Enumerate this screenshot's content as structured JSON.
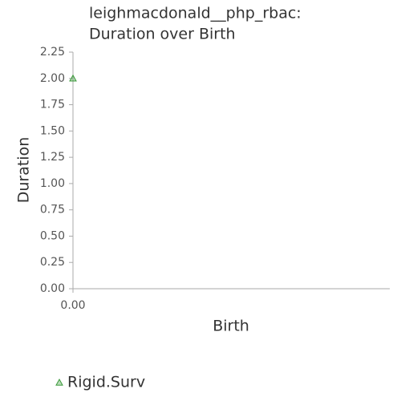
{
  "chart_data": {
    "type": "scatter",
    "title": [
      "leighmacdonald__php_rbac:",
      "Duration over Birth"
    ],
    "xlabel": "Birth",
    "ylabel": "Duration",
    "series": [
      {
        "name": "Rigid.Surv",
        "color": "#3a9a3a",
        "x": [
          0
        ],
        "values": [
          2
        ]
      }
    ],
    "xlim": [
      0,
      1
    ],
    "xticks": [
      {
        "value": 0,
        "label": "0.00"
      }
    ],
    "ylim": [
      0,
      2.25
    ],
    "yticks": [
      {
        "value": 0,
        "label": "0.00"
      },
      0.25,
      {
        "value": 0.5,
        "label": "0.50"
      },
      0.75,
      {
        "value": 1,
        "label": "1.00"
      },
      1.25,
      {
        "value": 1.5,
        "label": "1.50"
      },
      1.75,
      {
        "value": 2,
        "label": "2.00"
      },
      2.25
    ],
    "legend": "bottom-left"
  }
}
